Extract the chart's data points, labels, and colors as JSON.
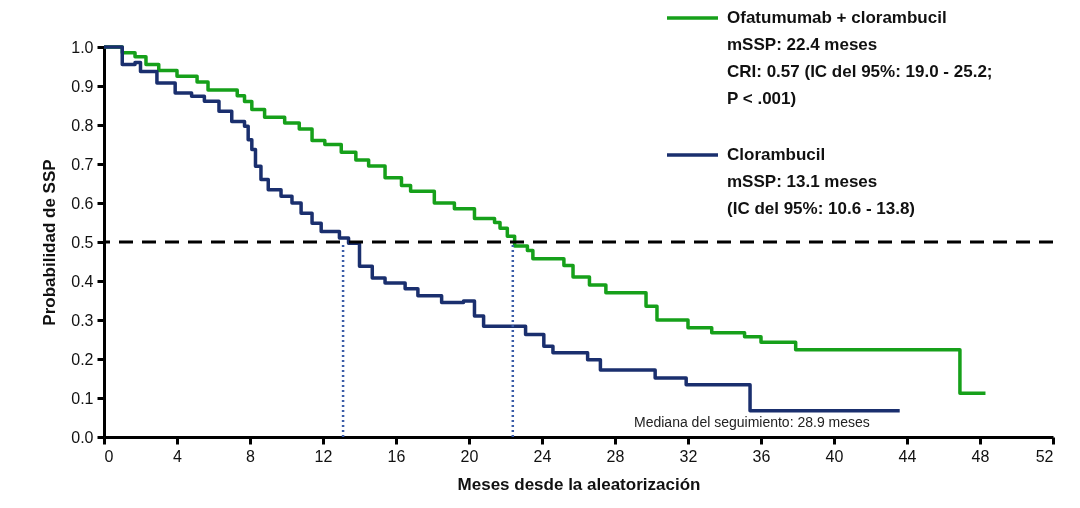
{
  "chart_data": {
    "type": "step",
    "xlabel": "Meses desde la aleatorización",
    "ylabel": "Probabilidad de SSP",
    "xlim": [
      0,
      52
    ],
    "xticks": [
      0,
      4,
      8,
      12,
      16,
      20,
      24,
      28,
      32,
      36,
      40,
      44,
      48,
      52
    ],
    "ylim": [
      0,
      1
    ],
    "yticks": [
      {
        "value": 0,
        "label": "0.0"
      },
      0.1,
      0.2,
      0.3,
      0.4,
      0.5,
      0.6,
      0.7,
      0.8,
      0.9,
      {
        "value": 1,
        "label": "1.0"
      }
    ],
    "grid": false,
    "legend": "top right",
    "marker": "none",
    "line_style": "solid",
    "series": [
      {
        "name": "Ofatumumab + clorambucil",
        "color": "#16a01a",
        "x": [
          0,
          1.0,
          1.7,
          2.3,
          3.0,
          4.0,
          5.1,
          5.7,
          7.3,
          7.7,
          8.1,
          8.8,
          9.9,
          10.7,
          11.4,
          12.1,
          13.0,
          13.8,
          14.5,
          15.4,
          16.3,
          16.8,
          18.1,
          19.2,
          20.3,
          21.4,
          21.7,
          22.1,
          22.5,
          23.2,
          23.5,
          25.2,
          25.7,
          26.6,
          27.5,
          29.7,
          30.3,
          32.0,
          33.3,
          35.1,
          36.0,
          37.9,
          46.9,
          48.3
        ],
        "values": [
          1.0,
          0.985,
          0.975,
          0.955,
          0.94,
          0.925,
          0.91,
          0.89,
          0.875,
          0.86,
          0.84,
          0.82,
          0.805,
          0.79,
          0.76,
          0.75,
          0.73,
          0.71,
          0.695,
          0.665,
          0.645,
          0.63,
          0.6,
          0.585,
          0.56,
          0.55,
          0.535,
          0.515,
          0.49,
          0.478,
          0.457,
          0.44,
          0.41,
          0.39,
          0.37,
          0.335,
          0.3,
          0.28,
          0.267,
          0.257,
          0.243,
          0.224,
          0.112,
          0.112
        ]
      },
      {
        "name": "Clorambucil",
        "color": "#1a2f6e",
        "x": [
          0,
          1.0,
          1.7,
          2.0,
          2.9,
          3.9,
          4.8,
          5.5,
          6.3,
          7.0,
          7.7,
          7.9,
          8.1,
          8.3,
          8.6,
          9.0,
          9.7,
          10.3,
          10.8,
          11.4,
          11.9,
          12.9,
          13.4,
          14.0,
          14.7,
          15.4,
          16.5,
          17.2,
          18.5,
          19.7,
          20.3,
          20.8,
          23.1,
          24.1,
          24.6,
          26.5,
          27.2,
          30.2,
          31.9,
          35.4,
          43.6
        ],
        "values": [
          1.0,
          0.955,
          0.96,
          0.937,
          0.908,
          0.882,
          0.874,
          0.861,
          0.835,
          0.809,
          0.797,
          0.762,
          0.737,
          0.694,
          0.66,
          0.634,
          0.617,
          0.6,
          0.574,
          0.548,
          0.527,
          0.51,
          0.497,
          0.438,
          0.408,
          0.395,
          0.38,
          0.362,
          0.345,
          0.349,
          0.31,
          0.284,
          0.263,
          0.233,
          0.216,
          0.198,
          0.172,
          0.151,
          0.134,
          0.067,
          0.067
        ]
      }
    ],
    "ref_lines": [
      {
        "axis": "y",
        "value": 0.5,
        "color": "#000000",
        "line_style": "dashed"
      },
      {
        "axis": "x",
        "value": 13.1,
        "color": "#3a5ca8",
        "line_style": "dotted"
      },
      {
        "axis": "x",
        "value": 22.4,
        "color": "#3a5ca8",
        "line_style": "dotted"
      }
    ],
    "annotations": [
      "mSSP: 22.4 meses",
      "CRI: 0.57 (IC del 95%: 19.0 - 25.2;",
      "P < .001)",
      "mSSP: 13.1 meses",
      "(IC del 95%: 10.6 - 13.8)",
      "Mediana del seguimiento: 28.9 meses"
    ]
  }
}
